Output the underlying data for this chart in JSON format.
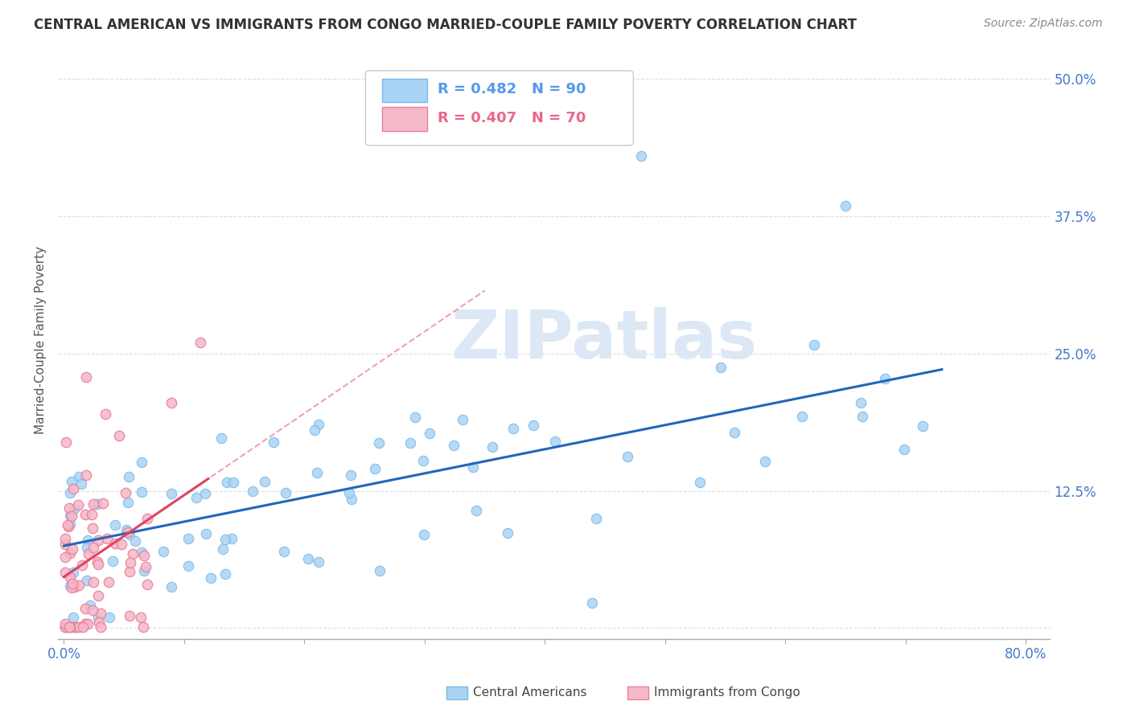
{
  "title": "CENTRAL AMERICAN VS IMMIGRANTS FROM CONGO MARRIED-COUPLE FAMILY POVERTY CORRELATION CHART",
  "source": "Source: ZipAtlas.com",
  "ylabel": "Married-Couple Family Poverty",
  "xlim": [
    -0.005,
    0.82
  ],
  "ylim": [
    -0.01,
    0.535
  ],
  "xtick_positions": [
    0.0,
    0.1,
    0.2,
    0.3,
    0.4,
    0.5,
    0.6,
    0.7,
    0.8
  ],
  "xticklabels": [
    "0.0%",
    "",
    "",
    "",
    "",
    "",
    "",
    "",
    "80.0%"
  ],
  "ytick_positions": [
    0.0,
    0.125,
    0.25,
    0.375,
    0.5
  ],
  "yticklabels": [
    "",
    "12.5%",
    "25.0%",
    "37.5%",
    "50.0%"
  ],
  "R_blue": 0.482,
  "N_blue": 90,
  "R_pink": 0.407,
  "N_pink": 70,
  "blue_scatter_color": "#aad4f5",
  "blue_edge_color": "#7ab8e8",
  "pink_scatter_color": "#f5b8c8",
  "pink_edge_color": "#e8809a",
  "blue_line_color": "#2266bb",
  "pink_line_color": "#dd4466",
  "pink_dash_color": "#f0a0b8",
  "watermark_color": "#dce8f5",
  "legend_blue_text": "#5599ee",
  "legend_pink_text": "#ee6688",
  "legend_blue_label": "Central Americans",
  "legend_pink_label": "Immigrants from Congo",
  "grid_color": "#dddddd",
  "title_color": "#333333",
  "source_color": "#888888",
  "ylabel_color": "#555555",
  "tick_color": "#4477cc"
}
